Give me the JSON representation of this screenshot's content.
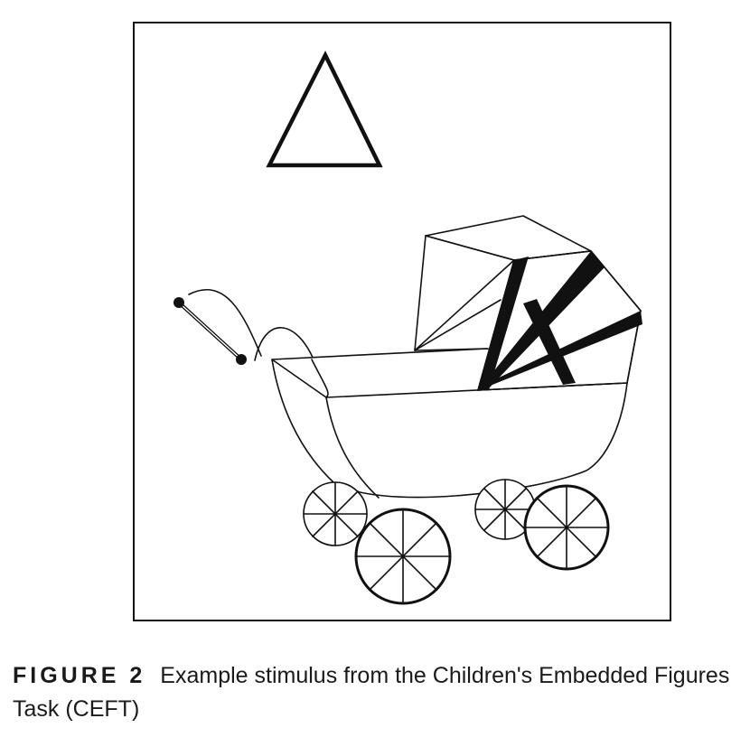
{
  "figure": {
    "label": "FIGURE 2",
    "caption": "Example stimulus from the Children's Embedded Figures Task (CEFT)",
    "stimulus": {
      "target_shape": "triangle",
      "embedding_picture": "baby pram"
    },
    "colors": {
      "line": "#111111",
      "background": "#ffffff"
    }
  }
}
